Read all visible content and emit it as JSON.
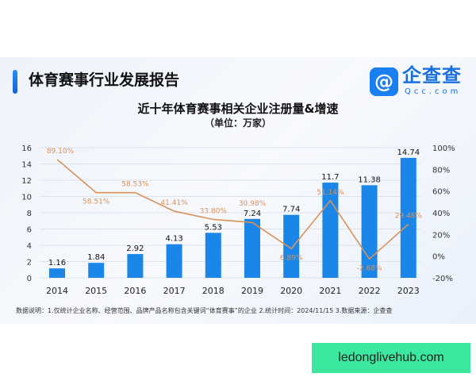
{
  "header": {
    "title": "体育赛事行业发展报告",
    "logo_text": "企查查",
    "logo_sub": "Qcc.com"
  },
  "chart_data": {
    "type": "bar+line",
    "title": "近十年体育赛事相关企业注册量&增速",
    "subtitle": "（单位：万家）",
    "categories": [
      "2014",
      "2015",
      "2016",
      "2017",
      "2018",
      "2019",
      "2020",
      "2021",
      "2022",
      "2023"
    ],
    "bar_values": [
      1.16,
      1.84,
      2.92,
      4.13,
      5.53,
      7.24,
      7.74,
      11.7,
      11.38,
      14.74
    ],
    "line_values": [
      89.1,
      58.51,
      58.53,
      41.41,
      33.8,
      30.98,
      6.89,
      51.14,
      -2.68,
      29.48
    ],
    "line_labels": [
      "89.10%",
      "58.51%",
      "58.53%",
      "41.41%",
      "33.80%",
      "30.98%",
      "6.89%",
      "51.14%",
      "-2.68%",
      "29.48%"
    ],
    "y_left": {
      "range": [
        0,
        16
      ],
      "ticks": [
        "0",
        "2",
        "4",
        "6",
        "8",
        "10",
        "12",
        "14",
        "16"
      ]
    },
    "y_right": {
      "range": [
        -20,
        100
      ],
      "ticks": [
        "-20%",
        "0%",
        "20%",
        "40%",
        "60%",
        "80%",
        "100%"
      ]
    },
    "grid": true,
    "colors": {
      "bar": "#1a86e8",
      "line": "#d9925a"
    }
  },
  "footer": {
    "note": "数据说明：1.仅统计企业名称、经营范围、品牌产品名称包含关键词“体育赛事”的企业  2.统计时间：2024/11/15   3.数据来源：企查查"
  },
  "watermark": "ledonglivehub.com"
}
